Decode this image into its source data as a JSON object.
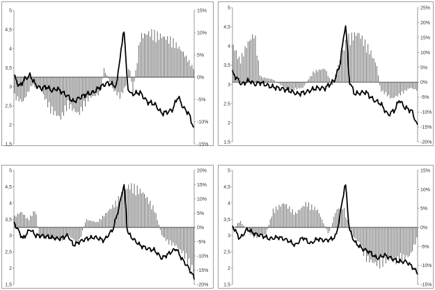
{
  "colors": {
    "bars": "#555555",
    "line": "#000000",
    "frame": "#9a9a9a",
    "axis": "#555555"
  },
  "chart_data": [
    {
      "type": "bar",
      "title": "",
      "left_axis": {
        "ticks": [
          "5",
          "4,5",
          "4",
          "3,5",
          "3",
          "2,5",
          "2",
          "1,5"
        ],
        "ylim": [
          1.5,
          5
        ]
      },
      "right_axis": {
        "ticks": [
          "15%",
          "10%",
          "5%",
          "0%",
          "-5%",
          "-10%",
          "-15%"
        ],
        "ylim": [
          -15,
          15
        ]
      },
      "series": [
        {
          "kind": "bar",
          "axis": "right",
          "knots": [
            [
              0,
              -5
            ],
            [
              5,
              -6
            ],
            [
              10,
              -2
            ],
            [
              15,
              -3
            ],
            [
              20,
              -8
            ],
            [
              26,
              -10
            ],
            [
              30,
              -7
            ],
            [
              36,
              -9
            ],
            [
              42,
              -5
            ],
            [
              48,
              -4
            ],
            [
              50,
              2
            ],
            [
              55,
              -3
            ],
            [
              59,
              -5
            ],
            [
              62,
              -2
            ],
            [
              64,
              3
            ],
            [
              66,
              -4
            ],
            [
              70,
              10
            ],
            [
              76,
              11
            ],
            [
              82,
              10
            ],
            [
              88,
              9
            ],
            [
              94,
              6
            ],
            [
              100,
              2
            ]
          ]
        },
        {
          "kind": "line",
          "axis": "left",
          "knots": [
            [
              0,
              3.3
            ],
            [
              3,
              3.0
            ],
            [
              6,
              3.2
            ],
            [
              9,
              3.3
            ],
            [
              12,
              3.05
            ],
            [
              15,
              2.95
            ],
            [
              18,
              3.0
            ],
            [
              21,
              2.9
            ],
            [
              24,
              2.95
            ],
            [
              27,
              2.85
            ],
            [
              30,
              2.75
            ],
            [
              33,
              2.6
            ],
            [
              36,
              2.7
            ],
            [
              40,
              2.8
            ],
            [
              44,
              2.85
            ],
            [
              48,
              3.0
            ],
            [
              52,
              3.1
            ],
            [
              55,
              3.05
            ],
            [
              57,
              3.0
            ],
            [
              58,
              3.5
            ],
            [
              60,
              4.1
            ],
            [
              61,
              4.6
            ],
            [
              62,
              3.8
            ],
            [
              63,
              3.0
            ],
            [
              65,
              2.8
            ],
            [
              70,
              2.85
            ],
            [
              74,
              2.6
            ],
            [
              78,
              2.55
            ],
            [
              82,
              2.3
            ],
            [
              86,
              2.35
            ],
            [
              88,
              2.4
            ],
            [
              91,
              2.75
            ],
            [
              94,
              2.45
            ],
            [
              97,
              2.3
            ],
            [
              100,
              1.88
            ]
          ]
        }
      ]
    },
    {
      "type": "bar",
      "title": "",
      "left_axis": {
        "ticks": [
          "5",
          "4,5",
          "4",
          "3,5",
          "3",
          "2,5",
          "2",
          "1,5"
        ],
        "ylim": [
          1.5,
          5
        ]
      },
      "right_axis": {
        "ticks": [
          "25%",
          "20%",
          "15%",
          "10%",
          "5%",
          "0%",
          "-5%",
          "-10%",
          "-15%",
          "-20%"
        ],
        "ylim": [
          -20,
          25
        ]
      },
      "series": [
        {
          "kind": "bar",
          "axis": "right",
          "knots": [
            [
              0,
              14
            ],
            [
              4,
              8
            ],
            [
              8,
              14
            ],
            [
              12,
              18
            ],
            [
              15,
              2
            ],
            [
              22,
              1
            ],
            [
              30,
              -3
            ],
            [
              38,
              -2
            ],
            [
              44,
              4
            ],
            [
              50,
              5
            ],
            [
              54,
              -1
            ],
            [
              58,
              8
            ],
            [
              62,
              16
            ],
            [
              68,
              18
            ],
            [
              74,
              12
            ],
            [
              78,
              6
            ],
            [
              80,
              -3
            ],
            [
              86,
              -6
            ],
            [
              92,
              -4
            ],
            [
              96,
              -2
            ],
            [
              100,
              -3
            ]
          ]
        },
        {
          "kind": "line",
          "axis": "left",
          "knots": [
            [
              0,
              3.3
            ],
            [
              5,
              3.0
            ],
            [
              9,
              3.1
            ],
            [
              12,
              3.0
            ],
            [
              15,
              3.05
            ],
            [
              20,
              2.95
            ],
            [
              25,
              2.9
            ],
            [
              30,
              2.85
            ],
            [
              35,
              2.75
            ],
            [
              40,
              2.8
            ],
            [
              45,
              2.9
            ],
            [
              50,
              2.9
            ],
            [
              55,
              3.1
            ],
            [
              58,
              3.5
            ],
            [
              60,
              4.2
            ],
            [
              61,
              4.6
            ],
            [
              62,
              4.0
            ],
            [
              63,
              3.1
            ],
            [
              66,
              2.75
            ],
            [
              72,
              2.8
            ],
            [
              76,
              2.6
            ],
            [
              80,
              2.5
            ],
            [
              84,
              2.2
            ],
            [
              88,
              2.35
            ],
            [
              90,
              2.6
            ],
            [
              93,
              2.4
            ],
            [
              97,
              2.3
            ],
            [
              100,
              1.9
            ]
          ]
        }
      ]
    },
    {
      "type": "bar",
      "title": "",
      "left_axis": {
        "ticks": [
          "5",
          "4,5",
          "4",
          "3,5",
          "3",
          "2,5",
          "2",
          "1,5"
        ],
        "ylim": [
          1.5,
          5
        ]
      },
      "right_axis": {
        "ticks": [
          "20%",
          "15%",
          "10%",
          "5%",
          "0%",
          "-5%",
          "-10%",
          "-15%",
          "-20%"
        ],
        "ylim": [
          -20,
          20
        ]
      },
      "series": [
        {
          "kind": "bar",
          "axis": "right",
          "knots": [
            [
              0,
              4
            ],
            [
              4,
              6
            ],
            [
              8,
              3
            ],
            [
              12,
              7
            ],
            [
              14,
              -4
            ],
            [
              20,
              -4
            ],
            [
              26,
              -5
            ],
            [
              30,
              -3
            ],
            [
              36,
              -6
            ],
            [
              40,
              3
            ],
            [
              46,
              2
            ],
            [
              52,
              6
            ],
            [
              56,
              9
            ],
            [
              60,
              13
            ],
            [
              64,
              16
            ],
            [
              68,
              15
            ],
            [
              72,
              13
            ],
            [
              78,
              7
            ],
            [
              82,
              -3
            ],
            [
              86,
              -6
            ],
            [
              90,
              -7
            ],
            [
              94,
              -10
            ],
            [
              97,
              -14
            ],
            [
              100,
              -17
            ]
          ]
        },
        {
          "kind": "line",
          "axis": "left",
          "knots": [
            [
              0,
              3.4
            ],
            [
              5,
              2.9
            ],
            [
              9,
              3.2
            ],
            [
              12,
              3.0
            ],
            [
              15,
              3.0
            ],
            [
              20,
              2.95
            ],
            [
              25,
              2.9
            ],
            [
              30,
              3.0
            ],
            [
              33,
              2.7
            ],
            [
              36,
              2.8
            ],
            [
              40,
              2.9
            ],
            [
              45,
              2.95
            ],
            [
              50,
              2.85
            ],
            [
              55,
              3.2
            ],
            [
              58,
              3.8
            ],
            [
              60,
              4.3
            ],
            [
              61,
              4.6
            ],
            [
              62,
              3.9
            ],
            [
              63,
              3.1
            ],
            [
              66,
              2.9
            ],
            [
              70,
              2.7
            ],
            [
              74,
              2.6
            ],
            [
              78,
              2.55
            ],
            [
              82,
              2.3
            ],
            [
              86,
              2.45
            ],
            [
              90,
              2.6
            ],
            [
              93,
              2.3
            ],
            [
              97,
              2.0
            ],
            [
              100,
              1.7
            ]
          ]
        }
      ]
    },
    {
      "type": "bar",
      "title": "",
      "left_axis": {
        "ticks": [
          "5",
          "4,5",
          "4",
          "3,5",
          "3",
          "2,5",
          "2",
          "1,5"
        ],
        "ylim": [
          1.5,
          5
        ]
      },
      "right_axis": {
        "ticks": [
          "15%",
          "10%",
          "5%",
          "0%",
          "-5%",
          "-10%",
          "-15%"
        ],
        "ylim": [
          -15,
          15
        ]
      },
      "series": [
        {
          "kind": "bar",
          "axis": "right",
          "knots": [
            [
              0,
              -1
            ],
            [
              4,
              2
            ],
            [
              8,
              -1
            ],
            [
              12,
              -3
            ],
            [
              18,
              -2
            ],
            [
              22,
              5
            ],
            [
              28,
              7
            ],
            [
              34,
              4
            ],
            [
              40,
              7
            ],
            [
              46,
              5
            ],
            [
              52,
              -2
            ],
            [
              56,
              5
            ],
            [
              60,
              6
            ],
            [
              64,
              -2
            ],
            [
              68,
              -4
            ],
            [
              72,
              -9
            ],
            [
              76,
              -10
            ],
            [
              80,
              -11
            ],
            [
              84,
              -9
            ],
            [
              88,
              -10
            ],
            [
              92,
              -9
            ],
            [
              96,
              -8
            ],
            [
              100,
              -3
            ]
          ]
        },
        {
          "kind": "line",
          "axis": "left",
          "knots": [
            [
              0,
              3.3
            ],
            [
              4,
              2.9
            ],
            [
              8,
              3.2
            ],
            [
              12,
              3.05
            ],
            [
              16,
              3.0
            ],
            [
              20,
              2.9
            ],
            [
              25,
              2.95
            ],
            [
              30,
              2.85
            ],
            [
              34,
              2.7
            ],
            [
              38,
              2.95
            ],
            [
              42,
              2.75
            ],
            [
              46,
              2.9
            ],
            [
              50,
              2.85
            ],
            [
              54,
              2.9
            ],
            [
              56,
              3.0
            ],
            [
              58,
              3.6
            ],
            [
              60,
              4.3
            ],
            [
              61,
              4.6
            ],
            [
              62,
              4.0
            ],
            [
              63,
              3.2
            ],
            [
              66,
              2.8
            ],
            [
              70,
              2.6
            ],
            [
              74,
              2.5
            ],
            [
              78,
              2.3
            ],
            [
              82,
              2.4
            ],
            [
              86,
              2.3
            ],
            [
              90,
              2.2
            ],
            [
              94,
              2.2
            ],
            [
              97,
              2.05
            ],
            [
              100,
              1.85
            ]
          ]
        }
      ]
    }
  ]
}
